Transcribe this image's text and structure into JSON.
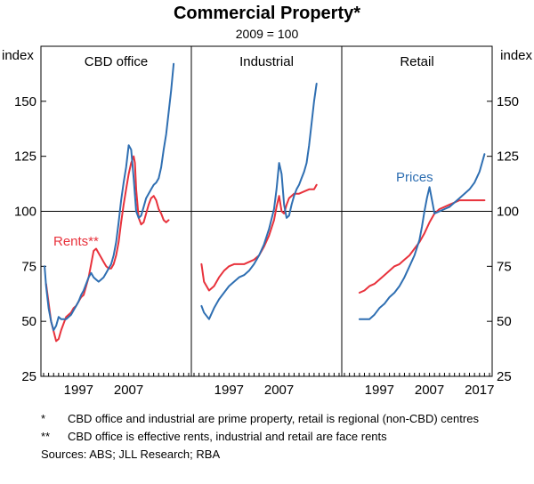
{
  "chart_data": {
    "type": "line",
    "title": "Commercial Property*",
    "subtitle": "2009 = 100",
    "y_unit_left": "index",
    "y_unit_right": "index",
    "ylim": [
      25,
      175
    ],
    "yticks": [
      25,
      50,
      75,
      100,
      125,
      150
    ],
    "xlim": [
      1990,
      2019
    ],
    "xtick_labels": {
      "panel_1": [
        "1997",
        "2007"
      ],
      "panel_2": [
        "1997",
        "2007"
      ],
      "panel_3": [
        "1997",
        "2007",
        "2017"
      ]
    },
    "reference_line": 100,
    "colors": {
      "prices": "#2f6fb2",
      "rents": "#e8323c"
    },
    "panels": [
      {
        "title": "CBD office",
        "series": [
          {
            "name": "Rents**",
            "key": "rents",
            "x": [
              1990.5,
              1991.5,
              1992.5,
              1993,
              1993.5,
              1994,
              1994.5,
              1995,
              1995.5,
              1996,
              1996.5,
              1997,
              1997.5,
              1998,
              1998.5,
              1999,
              1999.5,
              2000,
              2000.5,
              2001,
              2001.5,
              2002,
              2002.5,
              2003,
              2003.5,
              2004,
              2004.5,
              2005,
              2005.5,
              2006,
              2006.5,
              2007,
              2007.5,
              2008,
              2008.25,
              2008.5,
              2009,
              2009.5,
              2010,
              2010.5,
              2011,
              2011.5,
              2012,
              2012.5,
              2013,
              2013.5,
              2014,
              2014.5,
              2015
            ],
            "y": [
              67,
              50,
              41,
              42,
              46,
              49,
              52,
              53,
              54,
              56,
              57,
              59,
              61,
              62,
              66,
              70,
              76,
              82,
              83,
              81,
              79,
              77,
              75,
              74,
              74,
              76,
              80,
              86,
              95,
              103,
              110,
              117,
              122,
              125,
              122,
              110,
              97,
              94,
              95,
              99,
              103,
              106,
              107,
              105,
              101,
              99,
              96,
              95,
              96
            ]
          },
          {
            "name": "Prices",
            "key": "prices",
            "x": [
              1990.2,
              1990.5,
              1991,
              1991.5,
              1992,
              1992.5,
              1993,
              1993.5,
              1994,
              1994.5,
              1995,
              1995.5,
              1996,
              1996.5,
              1997,
              1997.5,
              1998,
              1998.5,
              1999,
              1999.5,
              2000,
              2000.5,
              2001,
              2001.5,
              2002,
              2002.5,
              2003,
              2003.5,
              2004,
              2004.5,
              2005,
              2005.5,
              2006,
              2006.5,
              2007,
              2007.5,
              2008,
              2008.5,
              2009,
              2009.5,
              2010,
              2010.5,
              2011,
              2011.5,
              2012,
              2012.5,
              2013,
              2013.5,
              2014,
              2014.5,
              2015,
              2015.5,
              2016
            ],
            "y": [
              75,
              66,
              56,
              50,
              46,
              48,
              52,
              51,
              51,
              51,
              52,
              53,
              55,
              57,
              59,
              62,
              64,
              67,
              70,
              72,
              70,
              69,
              68,
              69,
              70,
              72,
              74,
              76,
              80,
              86,
              95,
              105,
              113,
              120,
              130,
              128,
              115,
              100,
              97,
              98,
              102,
              106,
              108,
              110,
              112,
              113,
              115,
              120,
              128,
              135,
              145,
              155,
              167
            ]
          }
        ]
      },
      {
        "title": "Industrial",
        "series": [
          {
            "name": "Rents",
            "key": "rents",
            "x": [
              1991.5,
              1992,
              1993,
              1994,
              1995,
              1996,
              1997,
              1998,
              1999,
              2000,
              2001,
              2002,
              2003,
              2004,
              2005,
              2006,
              2006.5,
              2007,
              2007.5,
              2008,
              2008.5,
              2009,
              2010,
              2011,
              2012,
              2013,
              2014,
              2014.5
            ],
            "y": [
              76,
              68,
              64,
              66,
              70,
              73,
              75,
              76,
              76,
              76,
              77,
              78,
              80,
              84,
              89,
              96,
              102,
              107,
              100,
              99,
              103,
              106,
              108,
              108,
              109,
              110,
              110,
              112
            ]
          },
          {
            "name": "Prices",
            "key": "prices",
            "x": [
              1991.5,
              1992,
              1993,
              1994,
              1995,
              1996,
              1997,
              1998,
              1999,
              2000,
              2001,
              2002,
              2003,
              2004,
              2005,
              2006,
              2006.5,
              2007,
              2007.5,
              2008,
              2008.5,
              2009,
              2009.5,
              2010,
              2010.5,
              2011,
              2011.5,
              2012,
              2012.5,
              2013,
              2013.5,
              2014,
              2014.5
            ],
            "y": [
              57,
              54,
              51,
              56,
              60,
              63,
              66,
              68,
              70,
              71,
              73,
              76,
              80,
              85,
              92,
              101,
              110,
              122,
              117,
              103,
              97,
              98,
              103,
              107,
              110,
              112,
              115,
              118,
              122,
              130,
              140,
              150,
              158
            ]
          }
        ]
      },
      {
        "title": "Retail",
        "series": [
          {
            "name": "Rents",
            "key": "rents",
            "x": [
              1993,
              1994,
              1995,
              1996,
              1997,
              1998,
              1999,
              2000,
              2001,
              2002,
              2003,
              2004,
              2005,
              2006,
              2007,
              2008,
              2009,
              2010,
              2011,
              2012,
              2013,
              2014,
              2015,
              2016,
              2017,
              2018
            ],
            "y": [
              63,
              64,
              66,
              67,
              69,
              71,
              73,
              75,
              76,
              78,
              80,
              83,
              86,
              90,
              95,
              99,
              101,
              102,
              103,
              104,
              105,
              105,
              105,
              105,
              105,
              105
            ]
          },
          {
            "name": "Prices",
            "key": "prices",
            "x": [
              1993,
              1994,
              1995,
              1996,
              1997,
              1998,
              1999,
              2000,
              2001,
              2002,
              2003,
              2004,
              2005,
              2005.5,
              2006,
              2006.5,
              2007,
              2007.5,
              2008,
              2009,
              2010,
              2011,
              2012,
              2013,
              2014,
              2015,
              2016,
              2017,
              2017.5,
              2018
            ],
            "y": [
              51,
              51,
              51,
              53,
              56,
              58,
              61,
              63,
              66,
              70,
              75,
              80,
              87,
              93,
              100,
              106,
              111,
              105,
              99,
              100,
              101,
              102,
              104,
              106,
              108,
              110,
              113,
              118,
              122,
              126
            ]
          }
        ]
      }
    ],
    "annotations": [
      {
        "panel": 0,
        "series_key": "rents",
        "text": "Rents**"
      },
      {
        "panel": 2,
        "series_key": "prices",
        "text": "Prices"
      }
    ]
  },
  "footnotes": [
    {
      "mark": "*",
      "text": "CBD office and industrial are prime property, retail is regional (non-CBD) centres"
    },
    {
      "mark": "**",
      "text": "CBD office is effective rents, industrial and retail are face rents"
    }
  ],
  "sources": "Sources:  ABS; JLL Research; RBA"
}
